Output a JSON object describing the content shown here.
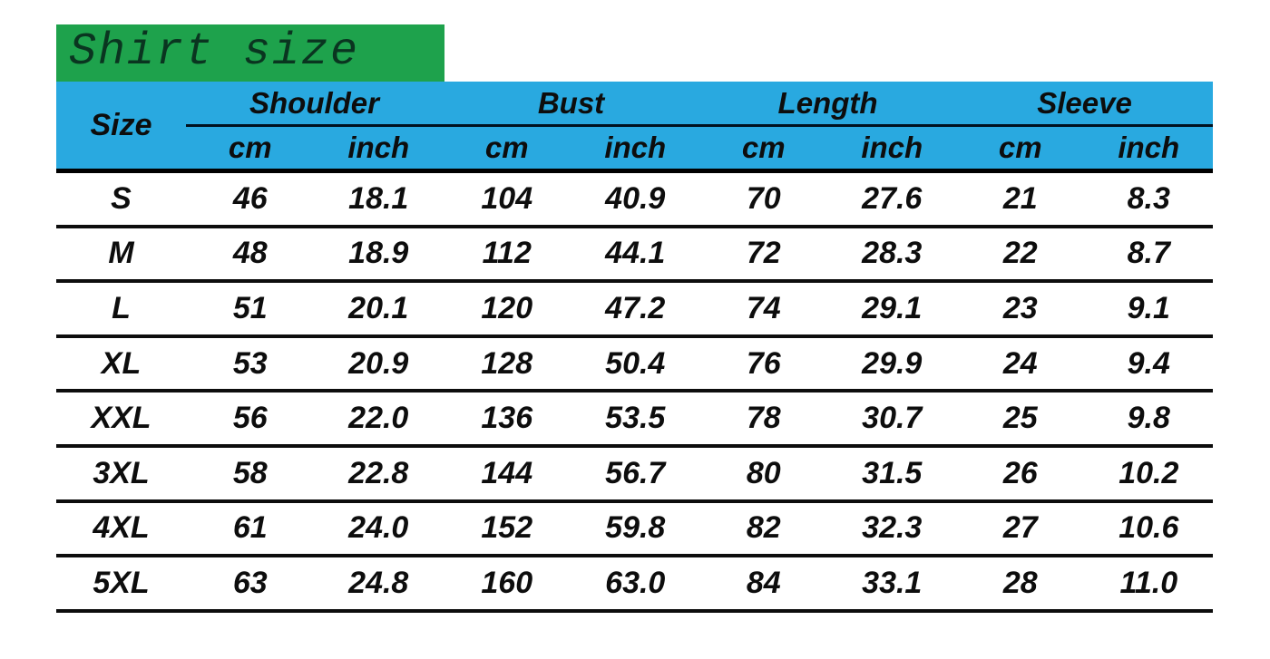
{
  "title": {
    "text": "Shirt size"
  },
  "colors": {
    "title_bg": "#1ea24c",
    "header_bg": "#29a9e0",
    "rule": "#000000",
    "text": "#0d0d0d",
    "page_bg": "#ffffff"
  },
  "table": {
    "size_header": "Size",
    "groups": [
      {
        "label": "Shoulder"
      },
      {
        "label": "Bust"
      },
      {
        "label": "Length"
      },
      {
        "label": "Sleeve"
      }
    ],
    "units": [
      "cm",
      "inch"
    ],
    "rows": [
      {
        "size": "S",
        "shoulder_cm": "46",
        "shoulder_inch": "18.1",
        "bust_cm": "104",
        "bust_inch": "40.9",
        "length_cm": "70",
        "length_inch": "27.6",
        "sleeve_cm": "21",
        "sleeve_inch": "8.3"
      },
      {
        "size": "M",
        "shoulder_cm": "48",
        "shoulder_inch": "18.9",
        "bust_cm": "112",
        "bust_inch": "44.1",
        "length_cm": "72",
        "length_inch": "28.3",
        "sleeve_cm": "22",
        "sleeve_inch": "8.7"
      },
      {
        "size": "L",
        "shoulder_cm": "51",
        "shoulder_inch": "20.1",
        "bust_cm": "120",
        "bust_inch": "47.2",
        "length_cm": "74",
        "length_inch": "29.1",
        "sleeve_cm": "23",
        "sleeve_inch": "9.1"
      },
      {
        "size": "XL",
        "shoulder_cm": "53",
        "shoulder_inch": "20.9",
        "bust_cm": "128",
        "bust_inch": "50.4",
        "length_cm": "76",
        "length_inch": "29.9",
        "sleeve_cm": "24",
        "sleeve_inch": "9.4"
      },
      {
        "size": "XXL",
        "shoulder_cm": "56",
        "shoulder_inch": "22.0",
        "bust_cm": "136",
        "bust_inch": "53.5",
        "length_cm": "78",
        "length_inch": "30.7",
        "sleeve_cm": "25",
        "sleeve_inch": "9.8"
      },
      {
        "size": "3XL",
        "shoulder_cm": "58",
        "shoulder_inch": "22.8",
        "bust_cm": "144",
        "bust_inch": "56.7",
        "length_cm": "80",
        "length_inch": "31.5",
        "sleeve_cm": "26",
        "sleeve_inch": "10.2"
      },
      {
        "size": "4XL",
        "shoulder_cm": "61",
        "shoulder_inch": "24.0",
        "bust_cm": "152",
        "bust_inch": "59.8",
        "length_cm": "82",
        "length_inch": "32.3",
        "sleeve_cm": "27",
        "sleeve_inch": "10.6"
      },
      {
        "size": "5XL",
        "shoulder_cm": "63",
        "shoulder_inch": "24.8",
        "bust_cm": "160",
        "bust_inch": "63.0",
        "length_cm": "84",
        "length_inch": "33.1",
        "sleeve_cm": "28",
        "sleeve_inch": "11.0"
      }
    ]
  },
  "chart_data": {
    "type": "table",
    "title": "Shirt size",
    "columns": [
      "Size",
      "Shoulder cm",
      "Shoulder inch",
      "Bust cm",
      "Bust inch",
      "Length cm",
      "Length inch",
      "Sleeve cm",
      "Sleeve inch"
    ],
    "rows": [
      [
        "S",
        46,
        18.1,
        104,
        40.9,
        70,
        27.6,
        21,
        8.3
      ],
      [
        "M",
        48,
        18.9,
        112,
        44.1,
        72,
        28.3,
        22,
        8.7
      ],
      [
        "L",
        51,
        20.1,
        120,
        47.2,
        74,
        29.1,
        23,
        9.1
      ],
      [
        "XL",
        53,
        20.9,
        128,
        50.4,
        76,
        29.9,
        24,
        9.4
      ],
      [
        "XXL",
        56,
        22.0,
        136,
        53.5,
        78,
        30.7,
        25,
        9.8
      ],
      [
        "3XL",
        58,
        22.8,
        144,
        56.7,
        80,
        31.5,
        26,
        10.2
      ],
      [
        "4XL",
        61,
        24.0,
        152,
        59.8,
        82,
        32.3,
        27,
        10.6
      ],
      [
        "5XL",
        63,
        24.8,
        160,
        63.0,
        84,
        33.1,
        28,
        11.0
      ]
    ],
    "layout": {
      "header_rows": 2,
      "grid": "horizontal-rules-only",
      "legend": "none"
    }
  }
}
